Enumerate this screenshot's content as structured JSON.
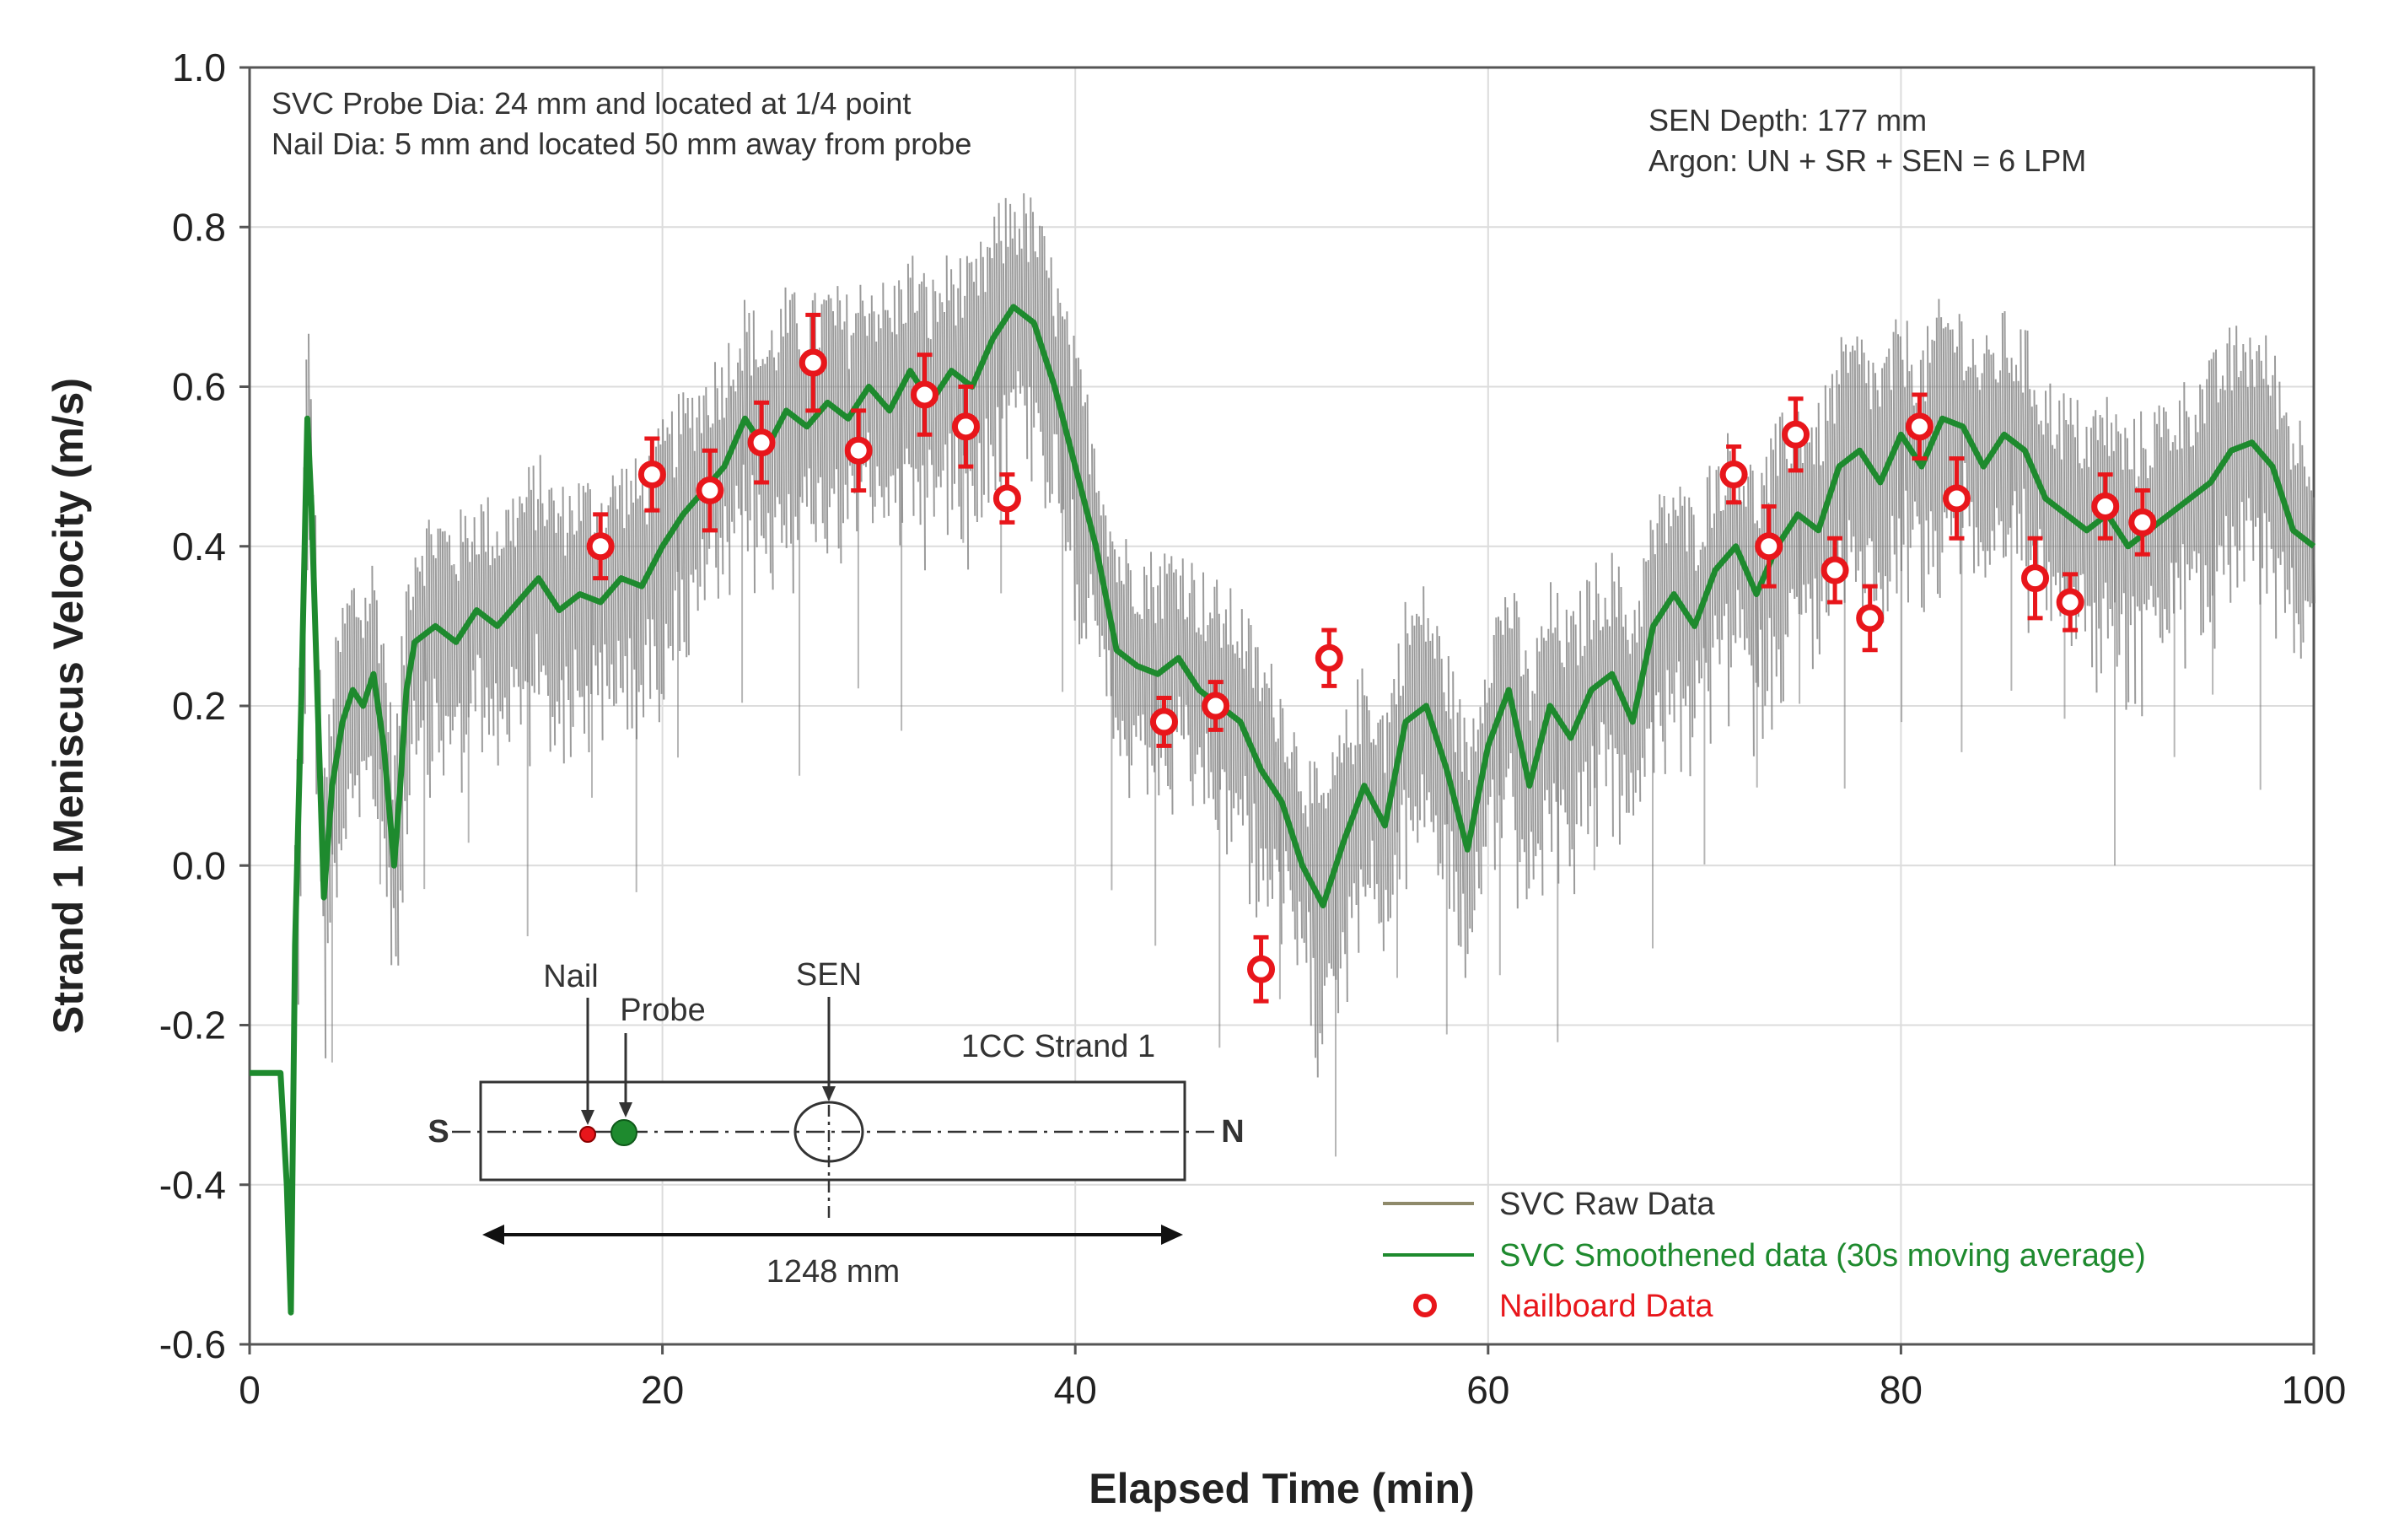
{
  "chart_data": {
    "type": "line",
    "xlabel": "Elapsed Time (min)",
    "ylabel": "Strand 1 Meniscus Velocity (m/s)",
    "xlim": [
      0,
      100
    ],
    "ylim": [
      -0.6,
      1.0
    ],
    "x_ticks": [
      0,
      20,
      40,
      60,
      80,
      100
    ],
    "y_ticks": [
      -0.6,
      -0.4,
      -0.2,
      0.0,
      0.2,
      0.4,
      0.6,
      0.8,
      1.0
    ],
    "x_tick_labels": [
      "0",
      "20",
      "40",
      "60",
      "80",
      "100"
    ],
    "y_tick_labels": [
      "-0.6",
      "-0.4",
      "-0.2",
      "0.0",
      "0.2",
      "0.4",
      "0.6",
      "0.8",
      "1.0"
    ],
    "grid": true,
    "annotations": {
      "probe_line1": "SVC Probe Dia: 24 mm and located at 1/4 point",
      "probe_line2": "Nail Dia: 5 mm and located 50 mm away from probe",
      "sen_line1": "SEN Depth: 177 mm",
      "sen_line2": "Argon: UN + SR + SEN = 6 LPM"
    },
    "inset": {
      "nail_label": "Nail",
      "probe_label": "Probe",
      "sen_label": "SEN",
      "strand_label": "1CC Strand 1",
      "south_label": "S",
      "north_label": "N",
      "width_label": "1248 mm"
    },
    "legend": {
      "position": "bottom-right",
      "entries": [
        "SVC Raw Data",
        "SVC Smoothened data (30s moving average)",
        "Nailboard Data"
      ]
    },
    "colors": {
      "raw": "#7a7a7a",
      "smoothed": "#1e8a2e",
      "nailboard": "#e8161b",
      "grid": "#dcdcdc",
      "axis": "#555555"
    },
    "series": [
      {
        "name": "SVC Smoothened data (30s moving average)",
        "x": [
          0,
          1,
          1.5,
          1.8,
          2.0,
          2.2,
          2.5,
          2.8,
          3.0,
          3.3,
          3.6,
          4.0,
          4.5,
          5,
          5.5,
          6,
          6.5,
          7,
          7.3,
          7.6,
          8,
          9,
          10,
          11,
          12,
          13,
          14,
          15,
          16,
          17,
          18,
          19,
          20,
          21,
          22,
          23,
          24,
          25,
          26,
          27,
          28,
          29,
          30,
          31,
          32,
          33,
          34,
          35,
          36,
          37,
          38,
          39,
          40,
          41,
          42,
          43,
          44,
          45,
          46,
          47,
          48,
          49,
          50,
          51,
          52,
          53,
          54,
          55,
          56,
          57,
          58,
          59,
          60,
          61,
          62,
          63,
          64,
          65,
          66,
          67,
          68,
          69,
          70,
          71,
          72,
          73,
          74,
          75,
          76,
          77,
          78,
          79,
          80,
          81,
          82,
          83,
          84,
          85,
          86,
          87,
          88,
          89,
          90,
          91,
          92,
          93,
          94,
          95,
          96,
          97,
          98,
          99,
          100
        ],
        "values": [
          -0.26,
          -0.26,
          -0.26,
          -0.4,
          -0.56,
          -0.1,
          0.2,
          0.56,
          0.45,
          0.2,
          -0.04,
          0.1,
          0.18,
          0.22,
          0.2,
          0.24,
          0.15,
          0.0,
          0.1,
          0.22,
          0.28,
          0.3,
          0.28,
          0.32,
          0.3,
          0.33,
          0.36,
          0.32,
          0.34,
          0.33,
          0.36,
          0.35,
          0.4,
          0.44,
          0.47,
          0.5,
          0.56,
          0.52,
          0.57,
          0.55,
          0.58,
          0.56,
          0.6,
          0.57,
          0.62,
          0.58,
          0.62,
          0.6,
          0.66,
          0.7,
          0.68,
          0.6,
          0.5,
          0.4,
          0.27,
          0.25,
          0.24,
          0.26,
          0.22,
          0.2,
          0.18,
          0.12,
          0.08,
          0.0,
          -0.05,
          0.03,
          0.1,
          0.05,
          0.18,
          0.2,
          0.12,
          0.02,
          0.15,
          0.22,
          0.1,
          0.2,
          0.16,
          0.22,
          0.24,
          0.18,
          0.3,
          0.34,
          0.3,
          0.37,
          0.4,
          0.34,
          0.4,
          0.44,
          0.42,
          0.5,
          0.52,
          0.48,
          0.54,
          0.5,
          0.56,
          0.55,
          0.5,
          0.54,
          0.52,
          0.46,
          0.44,
          0.42,
          0.44,
          0.4,
          0.42,
          0.44,
          0.46,
          0.48,
          0.52,
          0.53,
          0.5,
          0.42,
          0.4
        ]
      }
    ],
    "nailboard": [
      {
        "x": 17,
        "y": 0.4,
        "err": 0.04
      },
      {
        "x": 19.5,
        "y": 0.49,
        "err": 0.045
      },
      {
        "x": 22.3,
        "y": 0.47,
        "err": 0.05
      },
      {
        "x": 24.8,
        "y": 0.53,
        "err": 0.05
      },
      {
        "x": 27.3,
        "y": 0.63,
        "err": 0.06
      },
      {
        "x": 29.5,
        "y": 0.52,
        "err": 0.05
      },
      {
        "x": 32.7,
        "y": 0.59,
        "err": 0.05
      },
      {
        "x": 34.7,
        "y": 0.55,
        "err": 0.05
      },
      {
        "x": 36.7,
        "y": 0.46,
        "err": 0.03
      },
      {
        "x": 44.3,
        "y": 0.18,
        "err": 0.03
      },
      {
        "x": 46.8,
        "y": 0.2,
        "err": 0.03
      },
      {
        "x": 49.0,
        "y": -0.13,
        "err": 0.04
      },
      {
        "x": 52.3,
        "y": 0.26,
        "err": 0.035
      },
      {
        "x": 71.9,
        "y": 0.49,
        "err": 0.035
      },
      {
        "x": 73.6,
        "y": 0.4,
        "err": 0.05
      },
      {
        "x": 74.9,
        "y": 0.54,
        "err": 0.045
      },
      {
        "x": 76.8,
        "y": 0.37,
        "err": 0.04
      },
      {
        "x": 78.5,
        "y": 0.31,
        "err": 0.04
      },
      {
        "x": 80.9,
        "y": 0.55,
        "err": 0.04
      },
      {
        "x": 82.7,
        "y": 0.46,
        "err": 0.05
      },
      {
        "x": 86.5,
        "y": 0.36,
        "err": 0.05
      },
      {
        "x": 88.2,
        "y": 0.33,
        "err": 0.035
      },
      {
        "x": 89.9,
        "y": 0.45,
        "err": 0.04
      },
      {
        "x": 91.7,
        "y": 0.43,
        "err": 0.04
      }
    ]
  }
}
